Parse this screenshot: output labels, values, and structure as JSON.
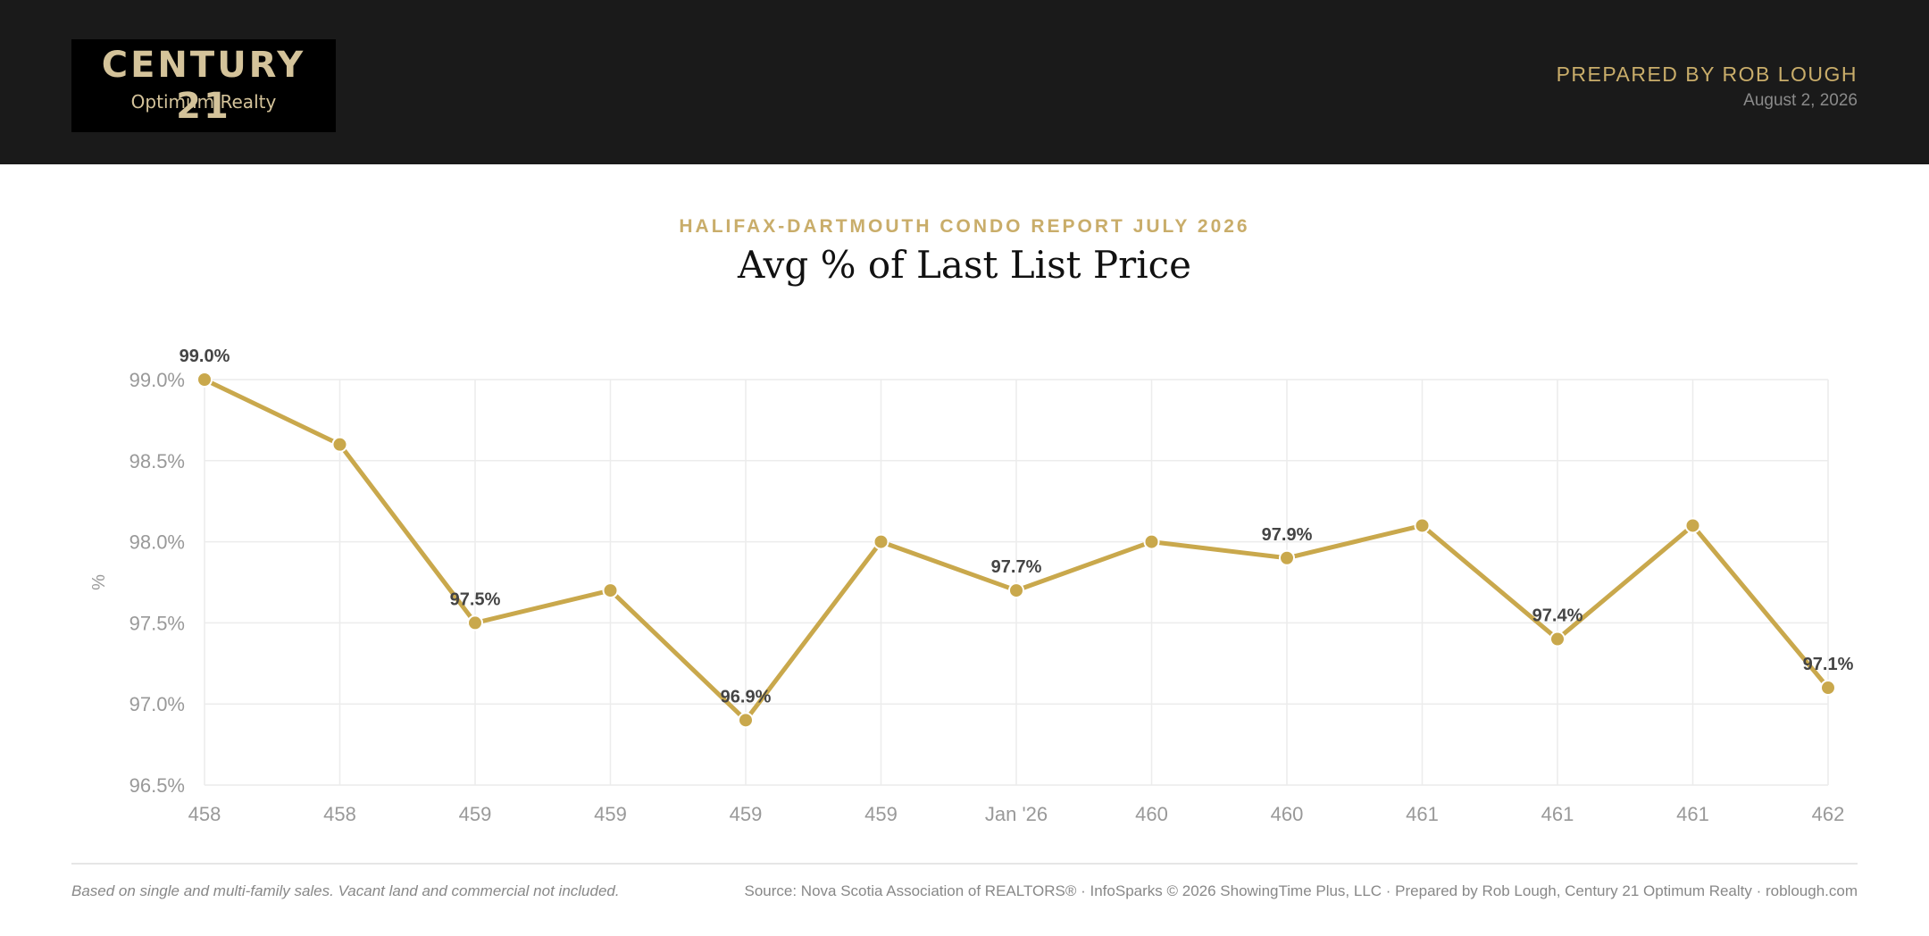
{
  "header": {
    "brand": "CENTURY 21",
    "brand_sub": "Optimum Realty",
    "prepared_by": "PREPARED BY ROB LOUGH",
    "date": "August 2, 2026"
  },
  "colors": {
    "accent": "#c9a84c",
    "header_bg": "#1a1a1a",
    "gold_text": "#c9ad6a"
  },
  "report": {
    "kicker": "HALIFAX-DARTMOUTH CONDO REPORT JULY 2026",
    "title": "Avg % of Last List Price"
  },
  "chart_data": {
    "type": "line",
    "x": [
      "458",
      "458",
      "459",
      "459",
      "459",
      "459",
      "Jan '26",
      "460",
      "460",
      "461",
      "461",
      "461",
      "462"
    ],
    "series": [
      {
        "values": [
          99.0,
          98.6,
          97.5,
          97.7,
          96.9,
          98.0,
          97.7,
          98.0,
          97.9,
          98.1,
          97.4,
          98.1,
          97.1
        ]
      }
    ],
    "data_labels": [
      "99.0%",
      null,
      "97.5%",
      null,
      "96.9%",
      null,
      "97.7%",
      null,
      "97.9%",
      null,
      "97.4%",
      null,
      "97.1%"
    ],
    "y_ticks": [
      "99.0%",
      "98.5%",
      "98.0%",
      "97.5%",
      "97.0%",
      "96.5%"
    ],
    "ylim": [
      96.5,
      99.0
    ],
    "ylabel": "%",
    "xlabel": "",
    "grid": true
  },
  "footer": {
    "note": "Based on single and multi-family sales. Vacant land and commercial not included.",
    "source": "Source: Nova Scotia Association of REALTORS® · InfoSparks © 2026 ShowingTime Plus, LLC · Prepared by Rob Lough, Century 21 Optimum Realty · roblough.com"
  }
}
